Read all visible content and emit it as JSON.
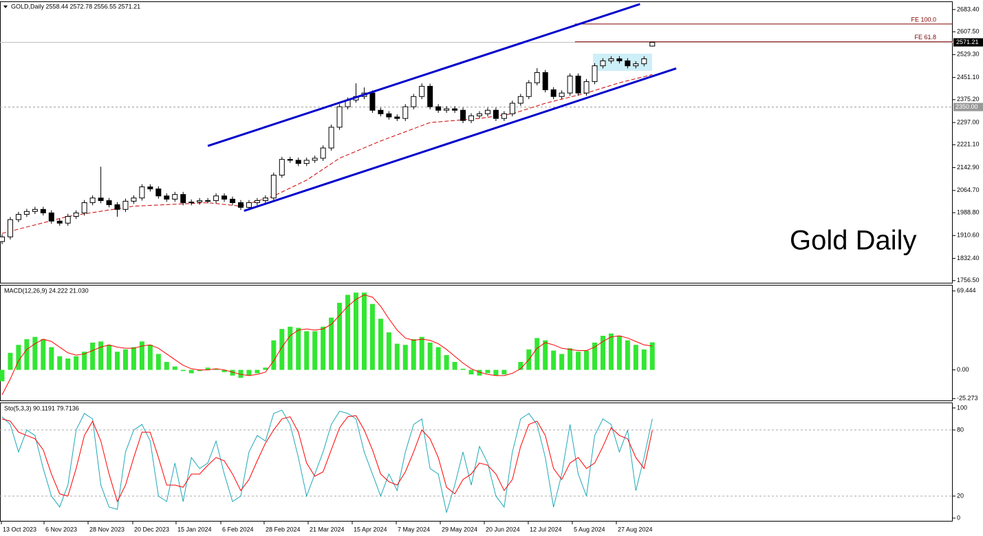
{
  "chart_data": [
    {
      "type": "candlestick",
      "title": "GOLD,Daily  2558.44 2572.78 2556.55 2571.21",
      "annotation": "Gold Daily",
      "xlim": [
        -0.25,
        115.5
      ],
      "ylim": [
        1749,
        2709
      ],
      "yticks": [
        {
          "value": 2683.4,
          "label": "2683.40"
        },
        {
          "value": 2607.5,
          "label": "2607.50"
        },
        {
          "value": 2529.3,
          "label": "2529.30"
        },
        {
          "value": 2451.1,
          "label": "2451.10"
        },
        {
          "value": 2375.2,
          "label": "2375.20"
        },
        {
          "value": 2297,
          "label": "2297.00"
        },
        {
          "value": 2221.1,
          "label": "2221.10"
        },
        {
          "value": 2142.9,
          "label": "2142.90"
        },
        {
          "value": 2064.7,
          "label": "2064.70"
        },
        {
          "value": 1988.8,
          "label": "1988.80"
        },
        {
          "value": 1910.6,
          "label": "1910.60"
        },
        {
          "value": 1832.4,
          "label": "1832.40"
        },
        {
          "value": 1756.5,
          "label": "1756.50"
        }
      ],
      "xticks": [
        {
          "value": -0.08,
          "label": "13 Oct 2023"
        },
        {
          "value": 5.1,
          "label": "6 Nov 2023"
        },
        {
          "value": 10.45,
          "label": "28 Nov 2023"
        },
        {
          "value": 15.88,
          "label": "20 Dec 2023"
        },
        {
          "value": 21.14,
          "label": "15 Jan 2024"
        },
        {
          "value": 26.58,
          "label": "6 Feb 2024"
        },
        {
          "value": 31.84,
          "label": "28 Feb 2024"
        },
        {
          "value": 37.19,
          "label": "21 Mar 2024"
        },
        {
          "value": 42.54,
          "label": "15 Apr 2024"
        },
        {
          "value": 47.89,
          "label": "7 May 2024"
        },
        {
          "value": 53.24,
          "label": "29 May 2024"
        },
        {
          "value": 58.59,
          "label": "20 Jun 2024"
        },
        {
          "value": 63.93,
          "label": "12 Jul 2024"
        },
        {
          "value": 69.28,
          "label": "5 Aug 2024"
        },
        {
          "value": 74.63,
          "label": "27 Aug 2024"
        }
      ],
      "open": [
        1890,
        1906,
        1965,
        1983,
        1993,
        2000,
        1988,
        1960,
        1953,
        1976,
        1988,
        2023,
        2039,
        2030,
        2016,
        2000,
        2028,
        2039,
        2077,
        2070,
        2046,
        2035,
        2051,
        2023,
        2025,
        2030,
        2030,
        2046,
        2035,
        2023,
        2007,
        2023,
        2030,
        2039,
        2117,
        2171,
        2168,
        2157,
        2168,
        2175,
        2210,
        2281,
        2351,
        2374,
        2386,
        2398,
        2339,
        2327,
        2316,
        2311,
        2351,
        2386,
        2421,
        2351,
        2339,
        2344,
        2339,
        2304,
        2320,
        2327,
        2339,
        2311,
        2327,
        2363,
        2386,
        2433,
        2468,
        2409,
        2386,
        2398,
        2456,
        2398,
        2437,
        2491,
        2508,
        2515,
        2508,
        2491,
        2498,
        2558.44
      ],
      "high": [
        1915,
        1974,
        1992,
        2002,
        2009,
        2009,
        1997,
        1969,
        1985,
        1997,
        2032,
        2048,
        2146,
        2039,
        2025,
        2037,
        2048,
        2086,
        2086,
        2079,
        2055,
        2060,
        2060,
        2034,
        2039,
        2039,
        2055,
        2055,
        2044,
        2032,
        2032,
        2039,
        2048,
        2126,
        2180,
        2180,
        2177,
        2177,
        2184,
        2219,
        2290,
        2360,
        2383,
        2431,
        2417,
        2407,
        2348,
        2336,
        2325,
        2360,
        2395,
        2431,
        2430,
        2360,
        2353,
        2353,
        2348,
        2329,
        2336,
        2348,
        2348,
        2336,
        2372,
        2395,
        2442,
        2483,
        2477,
        2418,
        2407,
        2465,
        2465,
        2446,
        2500,
        2517,
        2524,
        2524,
        2517,
        2507,
        2524,
        2572.78
      ],
      "low": [
        1881,
        1897,
        1956,
        1974,
        1984,
        1979,
        1951,
        1944,
        1944,
        1967,
        1979,
        2014,
        2021,
        2007,
        1975,
        1991,
        2019,
        2030,
        2061,
        2037,
        2026,
        2026,
        2014,
        2014,
        2016,
        2021,
        2021,
        2026,
        2014,
        1998,
        1998,
        2014,
        2021,
        2030,
        2108,
        2159,
        2148,
        2148,
        2159,
        2166,
        2201,
        2272,
        2342,
        2365,
        2377,
        2330,
        2318,
        2307,
        2302,
        2302,
        2342,
        2377,
        2342,
        2330,
        2330,
        2330,
        2295,
        2295,
        2311,
        2318,
        2302,
        2302,
        2318,
        2354,
        2377,
        2424,
        2400,
        2377,
        2377,
        2389,
        2389,
        2389,
        2428,
        2482,
        2499,
        2499,
        2482,
        2482,
        2489,
        2556.55
      ],
      "close": [
        1906,
        1965,
        1983,
        1993,
        2000,
        1988,
        1960,
        1953,
        1976,
        1988,
        2023,
        2039,
        2030,
        2016,
        2000,
        2028,
        2039,
        2077,
        2070,
        2046,
        2035,
        2051,
        2023,
        2025,
        2030,
        2030,
        2046,
        2035,
        2023,
        2007,
        2023,
        2030,
        2039,
        2117,
        2171,
        2168,
        2157,
        2168,
        2175,
        2210,
        2281,
        2351,
        2374,
        2386,
        2398,
        2339,
        2327,
        2316,
        2311,
        2351,
        2386,
        2421,
        2351,
        2339,
        2344,
        2339,
        2304,
        2320,
        2327,
        2339,
        2311,
        2327,
        2363,
        2386,
        2433,
        2468,
        2409,
        2386,
        2398,
        2456,
        2398,
        2437,
        2491,
        2508,
        2515,
        2508,
        2491,
        2498,
        2515,
        2571.21
      ],
      "ma": {
        "color": "#cc0000",
        "x": [
          0,
          8,
          16,
          25,
          29,
          33,
          37,
          41,
          46,
          52,
          58,
          62,
          66,
          71,
          75,
          79
        ],
        "values": [
          1918,
          1976,
          2011,
          2023,
          2011,
          2046,
          2100,
          2175,
          2234,
          2297,
          2311,
          2327,
          2363,
          2398,
          2433,
          2461
        ]
      },
      "trendlines": [
        {
          "color": "#0000cc",
          "x": [
            25,
            77.5
          ],
          "y": [
            2217,
            2702
          ]
        },
        {
          "color": "#0000cc",
          "x": [
            29.4,
            81.9
          ],
          "y": [
            1995,
            2482
          ]
        }
      ],
      "levels": [
        {
          "label": "FE 100.0",
          "value": 2634,
          "start": 69.6,
          "color": "#800000"
        },
        {
          "label": "FE 61.8",
          "value": 2573,
          "start": 69.6,
          "color": "#800000"
        }
      ],
      "hline": {
        "value": 2350,
        "label": "2350.00",
        "color": "#999999"
      },
      "color_up": "#ffffff",
      "color_down": "#000000"
    },
    {
      "type": "macd",
      "title": "MACD(12,26,9) 24.222 21.030",
      "ylim": [
        -26.9,
        74.2
      ],
      "yticks": [
        69.444,
        {
          "value": 0,
          "label": "0.00"
        },
        -25.273
      ],
      "color": "#33e633",
      "values": [
        -10,
        15,
        22,
        27,
        29,
        27,
        20,
        12,
        10,
        12,
        16,
        24,
        25,
        22,
        16,
        18,
        20,
        25,
        22,
        14,
        7,
        3,
        -1,
        -3,
        -1,
        2,
        1,
        -2,
        -5,
        -7,
        -5,
        -3,
        2,
        26,
        36,
        38,
        37,
        34,
        34,
        38,
        46,
        59,
        66,
        68,
        68,
        58,
        45,
        33,
        23,
        22,
        27,
        29,
        24,
        20,
        13,
        7,
        1,
        -4,
        -5,
        -3,
        -5,
        -4,
        0,
        7,
        18,
        28,
        26,
        17,
        14,
        19,
        16,
        17,
        24,
        30,
        32,
        30,
        26,
        22,
        18,
        24.222
      ],
      "signal": {
        "color": "#ff0000",
        "values": [
          -22,
          -8,
          8,
          18,
          23,
          27,
          25,
          20,
          15,
          13,
          14,
          17,
          20,
          22,
          20,
          19,
          19,
          21,
          22,
          19,
          14,
          9,
          4,
          1,
          0,
          0,
          1,
          0,
          -2,
          -4,
          -5,
          -4,
          -2,
          8,
          20,
          30,
          35,
          36,
          35,
          36,
          40,
          48,
          56,
          62,
          66,
          64,
          56,
          45,
          35,
          28,
          26,
          27,
          26,
          23,
          18,
          12,
          6,
          1,
          -2,
          -4,
          -5,
          -5,
          -3,
          1,
          9,
          19,
          24,
          22,
          19,
          18,
          17,
          17,
          20,
          25,
          29,
          30,
          28,
          25,
          22,
          21.03
        ]
      }
    },
    {
      "type": "line",
      "title": "Sto(5,3,3) 90.1191 79.7136",
      "ylim": [
        -2.5,
        104.3
      ],
      "yticks": [
        100,
        80,
        20,
        0
      ],
      "levels": [
        80,
        20
      ],
      "series": [
        {
          "color": "#1fa8b8",
          "values": [
            92,
            85,
            60,
            80,
            75,
            45,
            20,
            10,
            30,
            80,
            95,
            90,
            30,
            10,
            8,
            60,
            80,
            85,
            70,
            20,
            15,
            50,
            15,
            55,
            45,
            50,
            70,
            40,
            15,
            20,
            60,
            75,
            70,
            95,
            98,
            85,
            55,
            20,
            40,
            60,
            85,
            97,
            95,
            90,
            60,
            40,
            20,
            40,
            25,
            60,
            85,
            90,
            45,
            40,
            5,
            30,
            60,
            30,
            65,
            50,
            20,
            10,
            60,
            90,
            95,
            85,
            55,
            10,
            40,
            85,
            40,
            20,
            75,
            90,
            85,
            60,
            80,
            25,
            55,
            90.1191
          ]
        },
        {
          "color": "#ff0000",
          "values": [
            90,
            88,
            78,
            75,
            72,
            62,
            40,
            22,
            20,
            45,
            75,
            88,
            70,
            40,
            15,
            30,
            55,
            78,
            78,
            55,
            30,
            30,
            28,
            40,
            40,
            48,
            55,
            52,
            40,
            25,
            35,
            52,
            68,
            80,
            90,
            92,
            78,
            50,
            38,
            42,
            62,
            82,
            92,
            93,
            80,
            62,
            40,
            33,
            30,
            42,
            60,
            80,
            72,
            55,
            28,
            22,
            35,
            40,
            50,
            48,
            40,
            25,
            35,
            65,
            85,
            88,
            75,
            45,
            35,
            50,
            55,
            45,
            50,
            65,
            82,
            75,
            72,
            55,
            45,
            79.7136
          ]
        }
      ]
    }
  ]
}
